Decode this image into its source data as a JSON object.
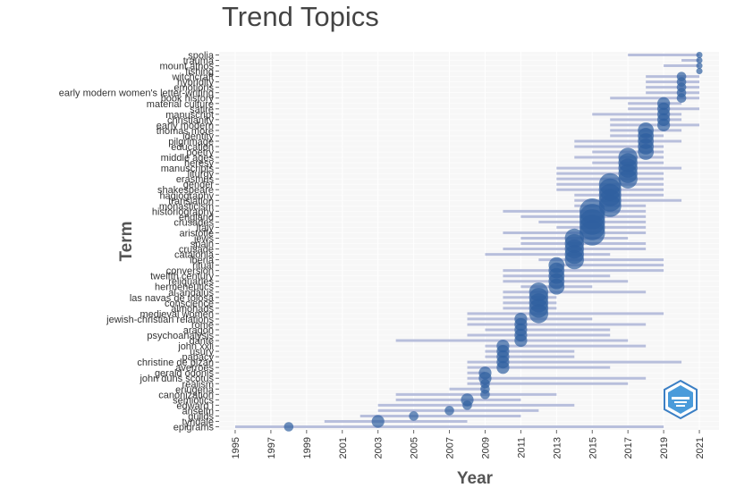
{
  "chart_data": {
    "type": "scatter",
    "title": "Trend Topics",
    "xlabel": "Year",
    "ylabel": "Term",
    "xlim": [
      1994.1,
      2022.1
    ],
    "xticks": [
      "1995",
      "1997",
      "1999",
      "2001",
      "2003",
      "2005",
      "2007",
      "2009",
      "2011",
      "2013",
      "2015",
      "2017",
      "2019",
      "2021"
    ],
    "grid": true,
    "colors": {
      "range_line": "#b8bfdc",
      "point": "#2f5f9f",
      "plot_bg": "#f7f7f7",
      "grid": "#ffffff"
    },
    "terms": [
      {
        "term": "spolia",
        "q1": 2017,
        "median": 2021,
        "q3": 2021,
        "freq": 3
      },
      {
        "term": "trauma",
        "q1": 2020,
        "median": 2021,
        "q3": 2021,
        "freq": 3
      },
      {
        "term": "mount athos",
        "q1": 2019,
        "median": 2021,
        "q3": 2021,
        "freq": 3
      },
      {
        "term": "fishing",
        "q1": 2021,
        "median": 2021,
        "q3": 2021,
        "freq": 3
      },
      {
        "term": "witchcraft",
        "q1": 2018,
        "median": 2020,
        "q3": 2021,
        "freq": 4
      },
      {
        "term": "hybridity",
        "q1": 2018,
        "median": 2020,
        "q3": 2021,
        "freq": 4
      },
      {
        "term": "emotions",
        "q1": 2018,
        "median": 2020,
        "q3": 2021,
        "freq": 4
      },
      {
        "term": "early modern women's letter-writing",
        "q1": 2018,
        "median": 2020,
        "q3": 2021,
        "freq": 4
      },
      {
        "term": "book history",
        "q1": 2016,
        "median": 2020,
        "q3": 2021,
        "freq": 4
      },
      {
        "term": "material culture",
        "q1": 2017,
        "median": 2019,
        "q3": 2020,
        "freq": 5
      },
      {
        "term": "satire",
        "q1": 2017,
        "median": 2019,
        "q3": 2021,
        "freq": 5
      },
      {
        "term": "manuscript",
        "q1": 2015,
        "median": 2019,
        "q3": 2020,
        "freq": 5
      },
      {
        "term": "christianity",
        "q1": 2016,
        "median": 2019,
        "q3": 2020,
        "freq": 5
      },
      {
        "term": "early modern",
        "q1": 2016,
        "median": 2019,
        "q3": 2021,
        "freq": 5
      },
      {
        "term": "thomas more",
        "q1": 2016,
        "median": 2018,
        "q3": 2020,
        "freq": 6
      },
      {
        "term": "identity",
        "q1": 2016,
        "median": 2018,
        "q3": 2019,
        "freq": 6
      },
      {
        "term": "pilgrimage",
        "q1": 2014,
        "median": 2018,
        "q3": 2020,
        "freq": 6
      },
      {
        "term": "education",
        "q1": 2014,
        "median": 2018,
        "q3": 2019,
        "freq": 6
      },
      {
        "term": "poetry",
        "q1": 2015,
        "median": 2018,
        "q3": 2019,
        "freq": 6
      },
      {
        "term": "middle ages",
        "q1": 2014,
        "median": 2017,
        "q3": 2019,
        "freq": 7
      },
      {
        "term": "heresy",
        "q1": 2015,
        "median": 2017,
        "q3": 2019,
        "freq": 7
      },
      {
        "term": "manuscripts",
        "q1": 2013,
        "median": 2017,
        "q3": 2020,
        "freq": 7
      },
      {
        "term": "liturgy",
        "q1": 2013,
        "median": 2017,
        "q3": 2019,
        "freq": 7
      },
      {
        "term": "erasmus",
        "q1": 2013,
        "median": 2017,
        "q3": 2019,
        "freq": 7
      },
      {
        "term": "gender",
        "q1": 2013,
        "median": 2016,
        "q3": 2019,
        "freq": 8
      },
      {
        "term": "shakespeare",
        "q1": 2013,
        "median": 2016,
        "q3": 2019,
        "freq": 8
      },
      {
        "term": "hagiography",
        "q1": 2014,
        "median": 2016,
        "q3": 2019,
        "freq": 8
      },
      {
        "term": "translation",
        "q1": 2014,
        "median": 2016,
        "q3": 2020,
        "freq": 8
      },
      {
        "term": "monasticism",
        "q1": 2014,
        "median": 2016,
        "q3": 2018,
        "freq": 8
      },
      {
        "term": "historiography",
        "q1": 2010,
        "median": 2015,
        "q3": 2018,
        "freq": 9
      },
      {
        "term": "england",
        "q1": 2011,
        "median": 2015,
        "q3": 2018,
        "freq": 9
      },
      {
        "term": "crusades",
        "q1": 2012,
        "median": 2015,
        "q3": 2018,
        "freq": 9
      },
      {
        "term": "italy",
        "q1": 2013,
        "median": 2015,
        "q3": 2018,
        "freq": 9
      },
      {
        "term": "aristotle",
        "q1": 2010,
        "median": 2015,
        "q3": 2018,
        "freq": 9
      },
      {
        "term": "jews",
        "q1": 2011,
        "median": 2014,
        "q3": 2017,
        "freq": 7
      },
      {
        "term": "spain",
        "q1": 2011,
        "median": 2014,
        "q3": 2018,
        "freq": 7
      },
      {
        "term": "crusade",
        "q1": 2010,
        "median": 2014,
        "q3": 2018,
        "freq": 7
      },
      {
        "term": "catalonia",
        "q1": 2009,
        "median": 2014,
        "q3": 2016,
        "freq": 7
      },
      {
        "term": "iberia",
        "q1": 2012,
        "median": 2014,
        "q3": 2019,
        "freq": 7
      },
      {
        "term": "ritual",
        "q1": 2013,
        "median": 2013,
        "q3": 2019,
        "freq": 6
      },
      {
        "term": "conversion",
        "q1": 2010,
        "median": 2013,
        "q3": 2019,
        "freq": 6
      },
      {
        "term": "twelfth century",
        "q1": 2010,
        "median": 2013,
        "q3": 2016,
        "freq": 6
      },
      {
        "term": "reliquaries",
        "q1": 2010,
        "median": 2013,
        "q3": 2017,
        "freq": 6
      },
      {
        "term": "hermeneutics",
        "q1": 2011,
        "median": 2013,
        "q3": 2015,
        "freq": 6
      },
      {
        "term": "al-andalus",
        "q1": 2010,
        "median": 2012,
        "q3": 2018,
        "freq": 7
      },
      {
        "term": "las navas de tolosa",
        "q1": 2010,
        "median": 2012,
        "q3": 2013,
        "freq": 7
      },
      {
        "term": "conscience",
        "q1": 2010,
        "median": 2012,
        "q3": 2013,
        "freq": 7
      },
      {
        "term": "almohads",
        "q1": 2010,
        "median": 2012,
        "q3": 2013,
        "freq": 7
      },
      {
        "term": "medieval women",
        "q1": 2008,
        "median": 2012,
        "q3": 2019,
        "freq": 7
      },
      {
        "term": "jewish-christian relations",
        "q1": 2008,
        "median": 2011,
        "q3": 2015,
        "freq": 5
      },
      {
        "term": "rome",
        "q1": 2008,
        "median": 2011,
        "q3": 2018,
        "freq": 5
      },
      {
        "term": "aragon",
        "q1": 2009,
        "median": 2011,
        "q3": 2016,
        "freq": 5
      },
      {
        "term": "psychoanalysis",
        "q1": 2008,
        "median": 2011,
        "q3": 2016,
        "freq": 5
      },
      {
        "term": "dante",
        "q1": 2004,
        "median": 2011,
        "q3": 2017,
        "freq": 5
      },
      {
        "term": "john xxii",
        "q1": 2009,
        "median": 2010,
        "q3": 2018,
        "freq": 5
      },
      {
        "term": "usury",
        "q1": 2009,
        "median": 2010,
        "q3": 2014,
        "freq": 5
      },
      {
        "term": "papacy",
        "q1": 2009,
        "median": 2010,
        "q3": 2014,
        "freq": 5
      },
      {
        "term": "christine de pizan",
        "q1": 2008,
        "median": 2010,
        "q3": 2020,
        "freq": 5
      },
      {
        "term": "averroes",
        "q1": 2008,
        "median": 2010,
        "q3": 2016,
        "freq": 5
      },
      {
        "term": "gerald odonis",
        "q1": 2008,
        "median": 2009,
        "q3": 2009,
        "freq": 5
      },
      {
        "term": "john duns scotus",
        "q1": 2008,
        "median": 2009,
        "q3": 2018,
        "freq": 5
      },
      {
        "term": "realism",
        "q1": 2008,
        "median": 2009,
        "q3": 2017,
        "freq": 4
      },
      {
        "term": "eriugena",
        "q1": 2007,
        "median": 2009,
        "q3": 2009,
        "freq": 4
      },
      {
        "term": "canonization",
        "q1": 2004,
        "median": 2009,
        "q3": 2013,
        "freq": 4
      },
      {
        "term": "semiotics",
        "q1": 2004,
        "median": 2008,
        "q3": 2011,
        "freq": 5
      },
      {
        "term": "edward i",
        "q1": 2003,
        "median": 2008,
        "q3": 2014,
        "freq": 4
      },
      {
        "term": "anselm",
        "q1": 2003,
        "median": 2007,
        "q3": 2012,
        "freq": 4
      },
      {
        "term": "guilds",
        "q1": 2002,
        "median": 2005,
        "q3": 2011,
        "freq": 4
      },
      {
        "term": "tyndale",
        "q1": 2000,
        "median": 2003,
        "q3": 2008,
        "freq": 5
      },
      {
        "term": "epigrams",
        "q1": 1995,
        "median": 1998,
        "q3": 2019,
        "freq": 4
      }
    ]
  }
}
